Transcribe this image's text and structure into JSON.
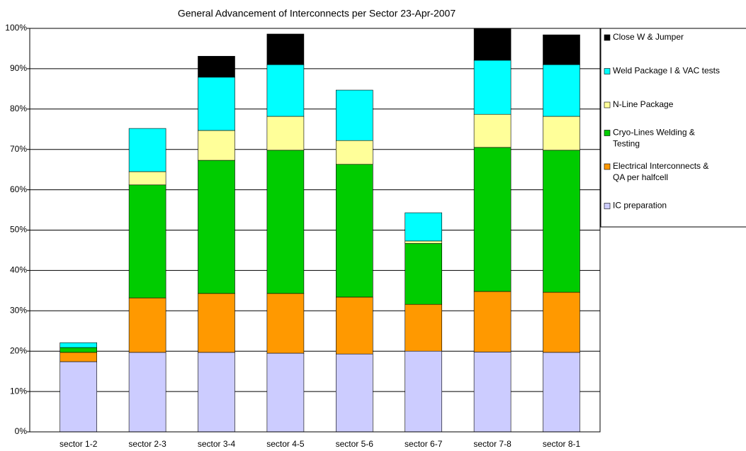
{
  "chart_data": {
    "type": "stacked_bar",
    "title": "General Advancement of Interconnects per Sector 23-Apr-2007",
    "categories": [
      "sector 1-2",
      "sector 2-3",
      "sector 3-4",
      "sector 4-5",
      "sector 5-6",
      "sector 6-7",
      "sector 7-8",
      "sector 8-1"
    ],
    "series": [
      {
        "name": "IC preparation",
        "color": "#ccccff",
        "values": [
          17.4,
          19.7,
          19.7,
          19.5,
          19.3,
          20.0,
          19.8,
          19.7
        ]
      },
      {
        "name": "Electrical Interconnects & QA per halfcell",
        "color": "#ff9900",
        "values": [
          2.3,
          13.5,
          14.6,
          14.8,
          14.1,
          11.6,
          15.0,
          14.9
        ]
      },
      {
        "name": "Cryo-Lines Welding & Testing",
        "color": "#00cc00",
        "values": [
          1.2,
          28.0,
          33.0,
          35.5,
          32.9,
          15.1,
          35.7,
          35.2
        ]
      },
      {
        "name": "N-Line Package",
        "color": "#ffff99",
        "values": [
          0,
          3.3,
          7.4,
          8.4,
          5.9,
          0.6,
          8.2,
          8.4
        ]
      },
      {
        "name": "Weld Package I & VAC tests",
        "color": "#00ffff",
        "values": [
          1.2,
          10.7,
          13.2,
          12.8,
          12.5,
          7.0,
          13.4,
          12.8
        ]
      },
      {
        "name": "Close W & Jumper",
        "color": "#000000",
        "values": [
          0,
          0,
          5.2,
          7.6,
          0,
          0,
          7.9,
          7.4
        ]
      }
    ],
    "ylim": [
      0,
      100
    ],
    "yticks": [
      {
        "value": 0,
        "label": "0%"
      },
      {
        "value": 10,
        "label": "10%"
      },
      {
        "value": 20,
        "label": "20%"
      },
      {
        "value": 30,
        "label": "30%"
      },
      {
        "value": 40,
        "label": "40%"
      },
      {
        "value": 50,
        "label": "50%"
      },
      {
        "value": 60,
        "label": "60%"
      },
      {
        "value": 70,
        "label": "70%"
      },
      {
        "value": 80,
        "label": "80%"
      },
      {
        "value": 90,
        "label": "90%"
      },
      {
        "value": 100,
        "label": "100%"
      }
    ],
    "grid": true,
    "legend": "right"
  }
}
